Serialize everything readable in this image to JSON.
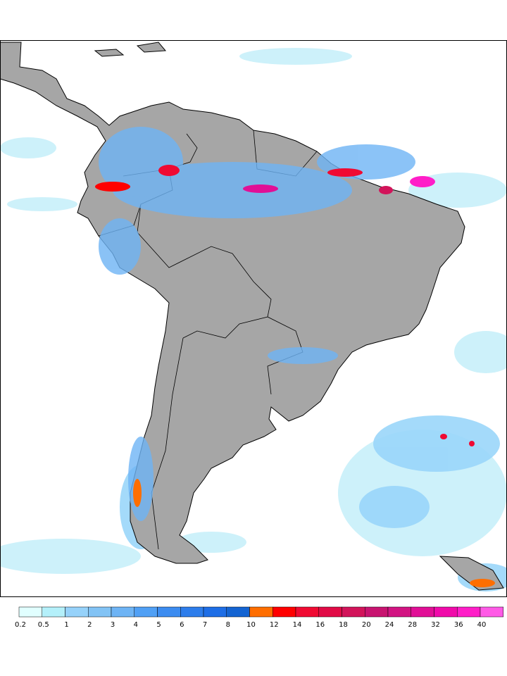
{
  "colorbar": {
    "levels": [
      0.2,
      0.5,
      1,
      2,
      3,
      4,
      5,
      6,
      7,
      8,
      10,
      12,
      14,
      16,
      18,
      20,
      24,
      28,
      32,
      36,
      40
    ],
    "colors": [
      "#e1ffff",
      "#b4f0fa",
      "#96d2fa",
      "#82c3f5",
      "#6eb4f5",
      "#50a0f5",
      "#3c8cf0",
      "#2d7deb",
      "#1e6ee6",
      "#1464d2",
      "#ff6e00",
      "#ff0000",
      "#f00a32",
      "#e10a46",
      "#d2145a",
      "#c81470",
      "#d21482",
      "#e10f96",
      "#f00aaa",
      "#ff1ec8",
      "#ff5ae6"
    ]
  }
}
